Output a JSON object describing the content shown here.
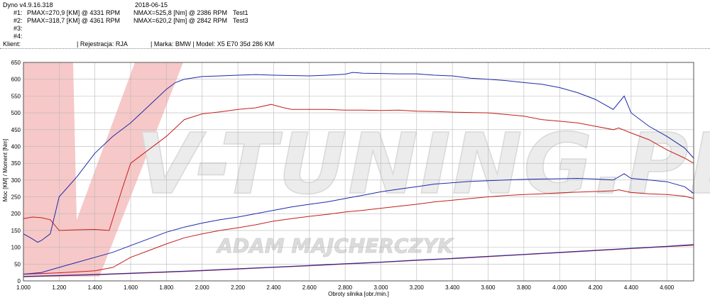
{
  "header": {
    "app_version": "Dyno v4.9.16.318",
    "date": "2018-06-15",
    "runs": [
      {
        "label": "#1:",
        "pmax": "PMAX=270,9 [KM] @ 4331 RPM",
        "nmax": "NMAX=525,8 [Nm] @ 2386 RPM",
        "name": "Test1"
      },
      {
        "label": "#2:",
        "pmax": "PMAX=318,7 [KM] @ 4361 RPM",
        "nmax": "NMAX=620,2 [Nm] @ 2842 RPM",
        "name": "Test3"
      },
      {
        "label": "#3:",
        "pmax": "",
        "nmax": "",
        "name": ""
      },
      {
        "label": "#4:",
        "pmax": "",
        "nmax": "",
        "name": ""
      }
    ],
    "client_label": "Klient:",
    "registration": "| Rejestracja: RJA",
    "vehicle": "| Marka: BMW | Model: X5 E70 35d 286 KM"
  },
  "watermark": {
    "logo": "V-TUNING.PL",
    "owner": "ADAM MAJCHERCZYK"
  },
  "chart_data": {
    "type": "line",
    "xlabel": "Obroty silnika [obr./min.]",
    "ylabel": "Moc [KM] / Moment [Nm]",
    "xlim": [
      1000,
      4750
    ],
    "ylim": [
      0,
      650
    ],
    "xticks": [
      1000,
      1200,
      1400,
      1600,
      1800,
      2000,
      2200,
      2400,
      2600,
      2800,
      3000,
      3200,
      3400,
      3600,
      3800,
      4000,
      4200,
      4400,
      4600
    ],
    "xtick_labels": [
      "1.000",
      "1.200",
      "1.400",
      "1.600",
      "1.800",
      "2.000",
      "2.200",
      "2.400",
      "2.600",
      "2.800",
      "3.000",
      "3.200",
      "3.400",
      "3.600",
      "3.800",
      "4.000",
      "4.200",
      "4.400",
      "4.600"
    ],
    "yticks": [
      0,
      50,
      100,
      150,
      200,
      250,
      300,
      350,
      400,
      450,
      500,
      550,
      600,
      650
    ],
    "grid": true,
    "colors": {
      "test1": "#c41e1e",
      "test3": "#1e2aa8",
      "losses": "#6a1a6a"
    },
    "series": [
      {
        "run": "Test1",
        "quantity": "torque",
        "color": "#c41e1e",
        "x": [
          1000,
          1050,
          1100,
          1150,
          1200,
          1300,
          1400,
          1480,
          1550,
          1600,
          1700,
          1800,
          1900,
          2000,
          2100,
          2200,
          2300,
          2386,
          2450,
          2500,
          2600,
          2700,
          2800,
          2900,
          3000,
          3100,
          3200,
          3300,
          3400,
          3500,
          3600,
          3700,
          3800,
          3900,
          4000,
          4100,
          4200,
          4300,
          4331,
          4400,
          4500,
          4600,
          4700,
          4750
        ],
        "y": [
          185,
          190,
          188,
          182,
          150,
          152,
          153,
          150,
          270,
          350,
          390,
          430,
          480,
          497,
          503,
          510,
          515,
          525,
          516,
          510,
          510,
          510,
          508,
          508,
          507,
          508,
          505,
          504,
          502,
          501,
          500,
          495,
          490,
          480,
          475,
          470,
          460,
          450,
          455,
          440,
          420,
          390,
          365,
          350
        ]
      },
      {
        "run": "Test1",
        "quantity": "power",
        "color": "#c41e1e",
        "x": [
          1000,
          1100,
          1200,
          1300,
          1400,
          1500,
          1550,
          1600,
          1700,
          1800,
          1900,
          2000,
          2100,
          2200,
          2300,
          2400,
          2500,
          2600,
          2700,
          2800,
          2900,
          3000,
          3100,
          3200,
          3300,
          3400,
          3500,
          3600,
          3700,
          3800,
          3900,
          4000,
          4100,
          4200,
          4300,
          4331,
          4400,
          4500,
          4600,
          4700,
          4750
        ],
        "y": [
          20,
          22,
          24,
          27,
          30,
          40,
          55,
          70,
          90,
          110,
          128,
          140,
          150,
          158,
          167,
          178,
          185,
          192,
          198,
          205,
          210,
          216,
          222,
          228,
          235,
          240,
          245,
          250,
          254,
          257,
          259,
          262,
          264,
          266,
          268,
          270.9,
          263,
          259,
          257,
          252,
          245
        ]
      },
      {
        "run": "Test3",
        "quantity": "torque",
        "color": "#1e2aa8",
        "x": [
          1000,
          1050,
          1080,
          1100,
          1150,
          1200,
          1300,
          1400,
          1500,
          1600,
          1700,
          1800,
          1850,
          1900,
          2000,
          2100,
          2200,
          2300,
          2400,
          2500,
          2600,
          2700,
          2800,
          2842,
          2900,
          3000,
          3100,
          3200,
          3300,
          3400,
          3500,
          3600,
          3700,
          3800,
          3900,
          4000,
          4100,
          4200,
          4300,
          4361,
          4400,
          4500,
          4600,
          4700,
          4750
        ],
        "y": [
          140,
          125,
          115,
          120,
          140,
          250,
          310,
          380,
          430,
          470,
          520,
          570,
          590,
          600,
          608,
          610,
          612,
          614,
          612,
          611,
          610,
          612,
          615,
          620.2,
          618,
          617,
          616,
          616,
          612,
          610,
          603,
          600,
          596,
          590,
          585,
          575,
          560,
          540,
          510,
          550,
          500,
          460,
          430,
          395,
          365
        ]
      },
      {
        "run": "Test3",
        "quantity": "power",
        "color": "#1e2aa8",
        "x": [
          1000,
          1100,
          1200,
          1300,
          1400,
          1500,
          1600,
          1700,
          1800,
          1900,
          2000,
          2100,
          2200,
          2300,
          2400,
          2500,
          2600,
          2700,
          2800,
          2900,
          3000,
          3100,
          3200,
          3300,
          3400,
          3500,
          3600,
          3700,
          3800,
          3900,
          4000,
          4100,
          4200,
          4300,
          4361,
          4400,
          4500,
          4600,
          4700,
          4750
        ],
        "y": [
          20,
          25,
          40,
          55,
          70,
          85,
          105,
          125,
          145,
          160,
          172,
          182,
          190,
          200,
          210,
          220,
          228,
          235,
          245,
          255,
          265,
          273,
          280,
          288,
          292,
          296,
          298,
          300,
          302,
          303,
          304,
          305,
          303,
          300,
          318.7,
          305,
          300,
          295,
          280,
          260
        ]
      },
      {
        "run": "Test1",
        "quantity": "losses",
        "color": "#c41e1e",
        "x": [
          1000,
          1200,
          1400,
          1600,
          1800,
          2000,
          2200,
          2400,
          2600,
          2800,
          3000,
          3200,
          3400,
          3600,
          3800,
          4000,
          4200,
          4400,
          4600,
          4750
        ],
        "y": [
          12,
          15,
          18,
          22,
          26,
          30,
          35,
          40,
          45,
          50,
          55,
          61,
          66,
          72,
          78,
          84,
          90,
          96,
          102,
          106
        ]
      },
      {
        "run": "Test3",
        "quantity": "losses",
        "color": "#1e2aa8",
        "x": [
          1000,
          1200,
          1400,
          1600,
          1800,
          2000,
          2200,
          2400,
          2600,
          2800,
          3000,
          3200,
          3400,
          3600,
          3800,
          4000,
          4200,
          4400,
          4600,
          4750
        ],
        "y": [
          13,
          16,
          19,
          23,
          27,
          31,
          36,
          41,
          46,
          51,
          56,
          62,
          67,
          73,
          79,
          85,
          91,
          97,
          103,
          108
        ]
      }
    ]
  }
}
